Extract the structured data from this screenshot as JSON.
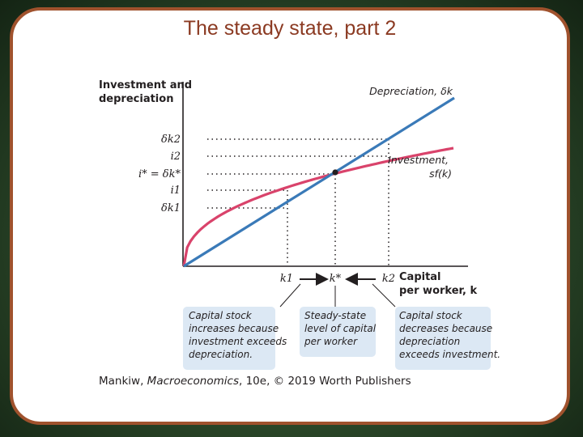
{
  "slide": {
    "title": "The steady state, part 2"
  },
  "chart_data": {
    "type": "line",
    "ylabel_lines": [
      "Investment and",
      "depreciation"
    ],
    "xlabel_lines": [
      "Capital",
      "per worker, k"
    ],
    "series": [
      {
        "name": "Depreciation, δk",
        "color": "#3a7ab8"
      },
      {
        "name": "Investment, sf(k)",
        "color": "#d9436b"
      }
    ],
    "investment_label_lines": [
      "Investment,",
      "sf(k)"
    ],
    "y_ticks": [
      "δk2",
      "i2",
      "i* = δk*",
      "i1",
      "δk1"
    ],
    "x_ticks": [
      "k1",
      "k*",
      "k2"
    ],
    "steady_state_point": "k*",
    "grid": false
  },
  "annotations": {
    "left_box": [
      "Capital stock",
      "increases because",
      "investment exceeds",
      "depreciation."
    ],
    "middle_box": [
      "Steady-state",
      "level of capital",
      "per worker"
    ],
    "right_box": [
      "Capital stock",
      "decreases because",
      "depreciation",
      "exceeds investment."
    ]
  },
  "colors": {
    "box_fill": "#dce8f4",
    "frame": "#a0522d",
    "title": "#8b3a22"
  },
  "credit": {
    "pre": "Mankiw, ",
    "book": "Macroeconomics",
    "post": ", 10e, © 2019 Worth Publishers"
  }
}
